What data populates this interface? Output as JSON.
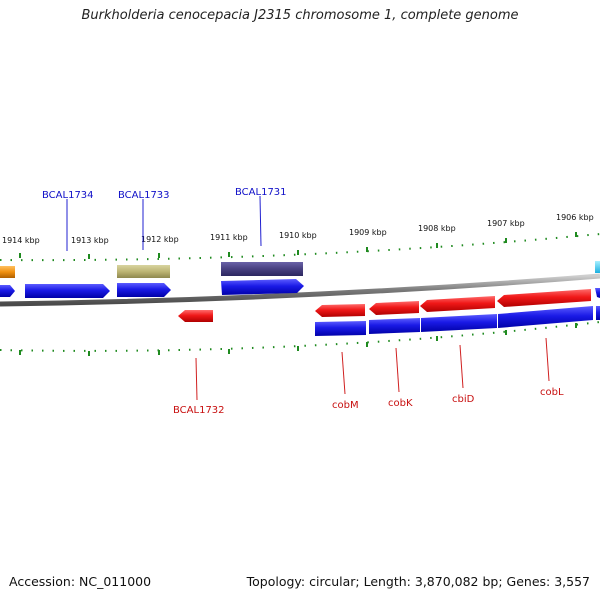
{
  "title": "Burkholderia cenocepacia J2315 chromosome 1, complete genome",
  "footer": {
    "accession": "Accession: NC_011000",
    "summary": "Topology: circular; Length: 3,870,082 bp; Genes: 3,557"
  },
  "scale_labels": [
    "1914 kbp",
    "1913 kbp",
    "1912 kbp",
    "1911 kbp",
    "1910 kbp",
    "1909 kbp",
    "1908 kbp",
    "1907 kbp",
    "1906 kbp"
  ],
  "gene_labels_top": [
    "BCAL1734",
    "BCAL1733",
    "BCAL1731"
  ],
  "gene_labels_bottom": [
    "BCAL1732",
    "cobM",
    "cobK",
    "cbiD",
    "cobL"
  ],
  "colors": {
    "cds_forward": "#1a1ae6",
    "cds_reverse": "#e61a1a",
    "backbone": "#8a8a8a",
    "tick": "#1f8a1f",
    "label_top": "#1010c8",
    "label_bottom": "#c81010"
  }
}
